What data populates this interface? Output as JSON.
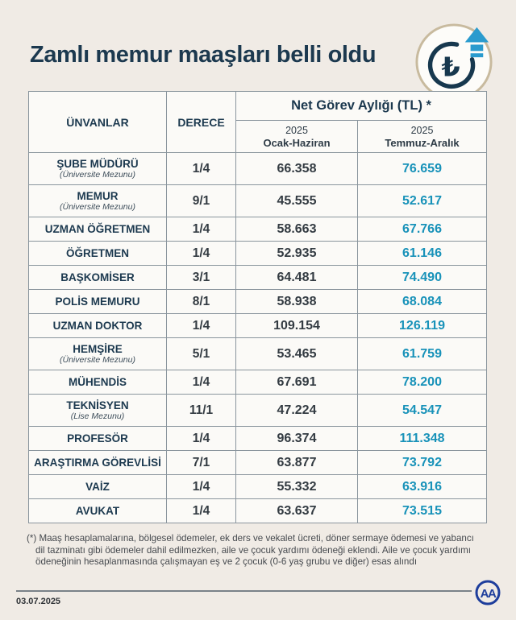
{
  "title": "Zamlı memur maaşları belli oldu",
  "icon": {
    "name": "lira-increase-icon",
    "symbol": "₺"
  },
  "colors": {
    "background": "#f0ebe5",
    "cell_background": "#fbfaf7",
    "border": "#8a959d",
    "navy": "#1c394f",
    "value_dark": "#333b42",
    "accent_teal": "#1892b9",
    "badge_ring_tan": "#c8ba9e",
    "arrow_blue": "#2a9bce",
    "logo_blue": "#1e3e9c"
  },
  "table": {
    "headers": {
      "col_titles": "ÜNVANLAR",
      "col_degree": "DERECE",
      "span": "Net Görev Aylığı (TL) *",
      "sub1_year": "2025",
      "sub1_period": "Ocak-Haziran",
      "sub2_year": "2025",
      "sub2_period": "Temmuz-Aralık"
    },
    "rows": [
      {
        "title": "ŞUBE MÜDÜRÜ",
        "subtitle": "(Üniversite Mezunu)",
        "degree": "1/4",
        "jan_jun": "66.358",
        "jul_dec": "76.659"
      },
      {
        "title": "MEMUR",
        "subtitle": "(Üniversite Mezunu)",
        "degree": "9/1",
        "jan_jun": "45.555",
        "jul_dec": "52.617"
      },
      {
        "title": "UZMAN ÖĞRETMEN",
        "subtitle": "",
        "degree": "1/4",
        "jan_jun": "58.663",
        "jul_dec": "67.766"
      },
      {
        "title": "ÖĞRETMEN",
        "subtitle": "",
        "degree": "1/4",
        "jan_jun": "52.935",
        "jul_dec": "61.146"
      },
      {
        "title": "BAŞKOMİSER",
        "subtitle": "",
        "degree": "3/1",
        "jan_jun": "64.481",
        "jul_dec": "74.490"
      },
      {
        "title": "POLİS MEMURU",
        "subtitle": "",
        "degree": "8/1",
        "jan_jun": "58.938",
        "jul_dec": "68.084"
      },
      {
        "title": "UZMAN DOKTOR",
        "subtitle": "",
        "degree": "1/4",
        "jan_jun": "109.154",
        "jul_dec": "126.119"
      },
      {
        "title": "HEMŞİRE",
        "subtitle": "(Üniversite Mezunu)",
        "degree": "5/1",
        "jan_jun": "53.465",
        "jul_dec": "61.759"
      },
      {
        "title": "MÜHENDİS",
        "subtitle": "",
        "degree": "1/4",
        "jan_jun": "67.691",
        "jul_dec": "78.200"
      },
      {
        "title": "TEKNİSYEN",
        "subtitle": "(Lise Mezunu)",
        "degree": "11/1",
        "jan_jun": "47.224",
        "jul_dec": "54.547"
      },
      {
        "title": "PROFESÖR",
        "subtitle": "",
        "degree": "1/4",
        "jan_jun": "96.374",
        "jul_dec": "111.348"
      },
      {
        "title": "ARAŞTIRMA GÖREVLİSİ",
        "subtitle": "",
        "degree": "7/1",
        "jan_jun": "63.877",
        "jul_dec": "73.792"
      },
      {
        "title": "VAİZ",
        "subtitle": "",
        "degree": "1/4",
        "jan_jun": "55.332",
        "jul_dec": "63.916"
      },
      {
        "title": "AVUKAT",
        "subtitle": "",
        "degree": "1/4",
        "jan_jun": "63.637",
        "jul_dec": "73.515"
      }
    ]
  },
  "footnote": "(*) Maaş hesaplamalarına, bölgesel ödemeler, ek ders ve vekalet ücreti, döner sermaye ödemesi ve yabancı dil tazminatı gibi ödemeler dahil edilmezken, aile ve çocuk yardımı ödeneği eklendi. Aile ve çocuk yardımı ödeneğinin hesaplanmasında çalışmayan eş ve 2 çocuk (0-6 yaş grubu ve diğer) esas alındı",
  "footer": {
    "date": "03.07.2025",
    "logo_text": "AA"
  },
  "chart_data": {
    "type": "table",
    "title": "Zamlı memur maaşları belli oldu",
    "columns": [
      "ÜNVANLAR",
      "DERECE",
      "Net Görev Aylığı (TL) * 2025 Ocak-Haziran",
      "Net Görev Aylığı (TL) * 2025 Temmuz-Aralık"
    ],
    "rows": [
      [
        "ŞUBE MÜDÜRÜ (Üniversite Mezunu)",
        "1/4",
        66358,
        76659
      ],
      [
        "MEMUR (Üniversite Mezunu)",
        "9/1",
        45555,
        52617
      ],
      [
        "UZMAN ÖĞRETMEN",
        "1/4",
        58663,
        67766
      ],
      [
        "ÖĞRETMEN",
        "1/4",
        52935,
        61146
      ],
      [
        "BAŞKOMİSER",
        "3/1",
        64481,
        74490
      ],
      [
        "POLİS MEMURU",
        "8/1",
        58938,
        68084
      ],
      [
        "UZMAN DOKTOR",
        "1/4",
        109154,
        126119
      ],
      [
        "HEMŞİRE (Üniversite Mezunu)",
        "5/1",
        53465,
        61759
      ],
      [
        "MÜHENDİS",
        "1/4",
        67691,
        78200
      ],
      [
        "TEKNİSYEN (Lise Mezunu)",
        "11/1",
        47224,
        54547
      ],
      [
        "PROFESÖR",
        "1/4",
        96374,
        111348
      ],
      [
        "ARAŞTIRMA GÖREVLİSİ",
        "7/1",
        63877,
        73792
      ],
      [
        "VAİZ",
        "1/4",
        55332,
        63916
      ],
      [
        "AVUKAT",
        "1/4",
        63637,
        73515
      ]
    ]
  }
}
